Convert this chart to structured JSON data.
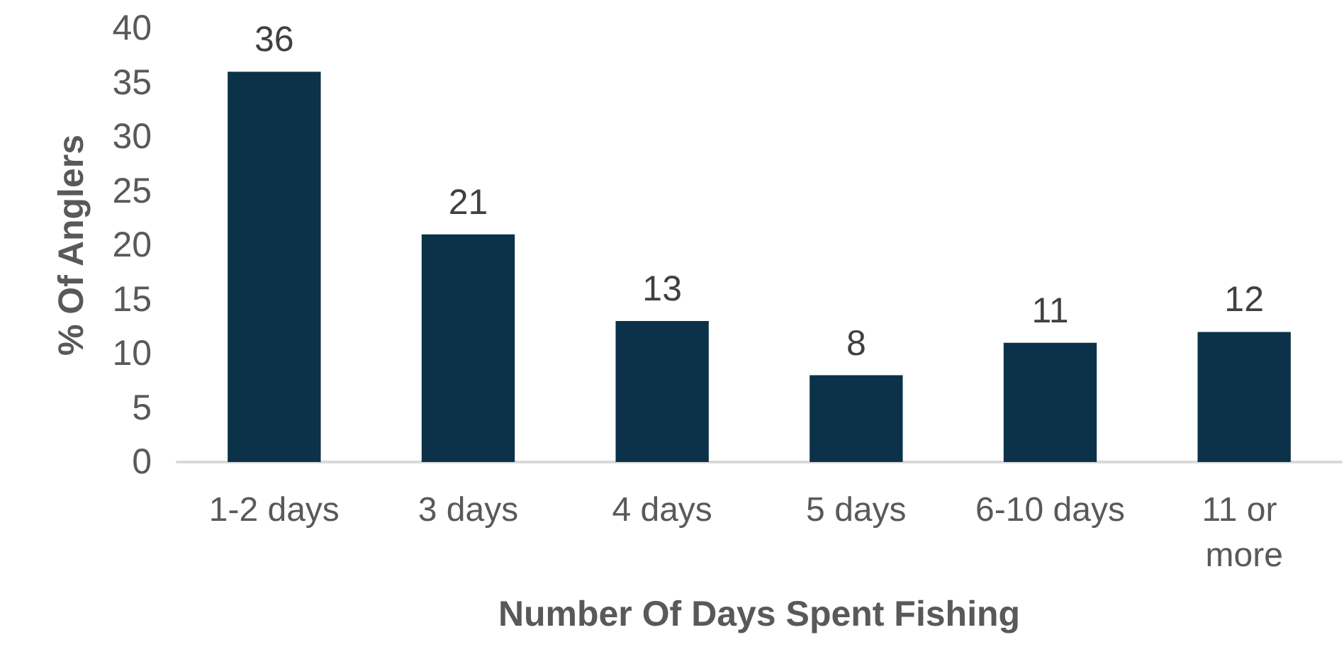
{
  "chart_data": {
    "type": "bar",
    "xlabel": "Number Of Days Spent Fishing",
    "ylabel": "% Of Anglers",
    "categories": [
      "1-2 days",
      "3 days",
      "4 days",
      "5 days",
      "6-10 days",
      "11 or more"
    ],
    "values": [
      36,
      21,
      13,
      8,
      11,
      12
    ],
    "color": "#0b3249",
    "ylim": [
      0,
      40
    ],
    "yticks": [
      0,
      5,
      10,
      15,
      20,
      25,
      30,
      35,
      40
    ],
    "grid": false,
    "data_labels": true
  }
}
